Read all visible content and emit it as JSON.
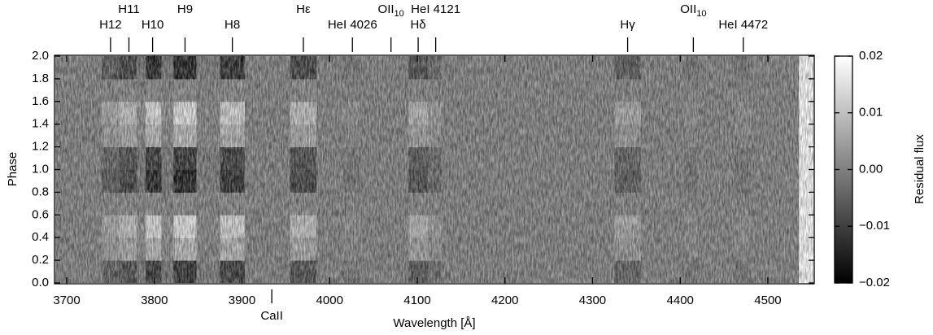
{
  "chart_data": {
    "type": "heatmap",
    "xlabel": "Wavelength [Å]",
    "ylabel": "Phase",
    "colorbar_label": "Residual flux",
    "colormap": "gray",
    "x_edges": [
      3685,
      3740,
      3760,
      3780,
      3790,
      3808,
      3822,
      3848,
      3875,
      3903,
      3955,
      3985,
      4015,
      4035,
      4090,
      4112,
      4128,
      4325,
      4355,
      4405,
      4420,
      4462,
      4480,
      4535
    ],
    "y_edges": [
      0,
      0.2,
      0.4,
      0.6,
      0.8,
      1,
      1.2,
      1.4,
      1.6,
      1.8,
      2
    ],
    "z": [
      [
        0,
        -0.0048,
        -0.008,
        -0.0016,
        -0.0112,
        -0.0016,
        -0.012,
        -0.0008,
        -0.0104,
        0,
        -0.008,
        0,
        -0.0016,
        0,
        -0.0064,
        -0.0032,
        0,
        -0.0048,
        0,
        -0.0016,
        0,
        -0.0016,
        0
      ],
      [
        0,
        0.0036,
        0.006,
        0.0012,
        0.0084,
        0.0012,
        0.009,
        0.0006,
        0.0078,
        0,
        0.006,
        0,
        0.0012,
        0,
        0.0048,
        0.0024,
        0,
        0.0036,
        0,
        0.0012,
        0,
        0.0012,
        0
      ],
      [
        0,
        0.006,
        0.01,
        0.002,
        0.014,
        0.002,
        0.015,
        0.001,
        0.013,
        0,
        0.01,
        0,
        0.002,
        0,
        0.008,
        0.004,
        0,
        0.006,
        0,
        0.002,
        0,
        0.002,
        0
      ],
      [
        0,
        0.0006,
        0.001,
        0.0002,
        0.0014,
        0.0002,
        0.0015,
        0.0001,
        0.0013,
        0,
        0.001,
        0,
        0.0002,
        0,
        0.0008,
        0.0004,
        0,
        0.0006,
        0,
        0.0002,
        0,
        0.0002,
        0
      ],
      [
        0,
        -0.006,
        -0.01,
        -0.002,
        -0.014,
        -0.002,
        -0.015,
        -0.001,
        -0.013,
        0,
        -0.01,
        0,
        -0.002,
        0,
        -0.008,
        -0.004,
        0,
        -0.006,
        0,
        -0.002,
        0,
        -0.002,
        0
      ],
      [
        0,
        -0.0048,
        -0.008,
        -0.0016,
        -0.0112,
        -0.0016,
        -0.012,
        -0.0008,
        -0.0104,
        0,
        -0.008,
        0,
        -0.0016,
        0,
        -0.0064,
        -0.0032,
        0,
        -0.0048,
        0,
        -0.0016,
        0,
        -0.0016,
        0
      ],
      [
        0,
        0.0036,
        0.006,
        0.0012,
        0.0084,
        0.0012,
        0.009,
        0.0006,
        0.0078,
        0,
        0.006,
        0,
        0.0012,
        0,
        0.0048,
        0.0024,
        0,
        0.0036,
        0,
        0.0012,
        0,
        0.0012,
        0
      ],
      [
        0,
        0.006,
        0.01,
        0.002,
        0.014,
        0.002,
        0.015,
        0.001,
        0.013,
        0,
        0.01,
        0,
        0.002,
        0,
        0.008,
        0.004,
        0,
        0.006,
        0,
        0.002,
        0,
        0.002,
        0
      ],
      [
        0,
        0.0006,
        0.001,
        0.0002,
        0.0014,
        0.0002,
        0.0015,
        0.0001,
        0.0013,
        0,
        0.001,
        0,
        0.0002,
        0,
        0.0008,
        0.0004,
        0,
        0.0006,
        0,
        0.0002,
        0,
        0.0002,
        0
      ],
      [
        0,
        -0.006,
        -0.01,
        -0.002,
        -0.014,
        -0.002,
        -0.015,
        -0.001,
        -0.013,
        0,
        -0.01,
        0,
        -0.002,
        0,
        -0.008,
        -0.004,
        0,
        -0.006,
        0,
        -0.002,
        0,
        -0.002,
        0
      ]
    ],
    "xlim": [
      3687,
      4552
    ],
    "ylim": [
      0,
      2
    ],
    "xticks": [
      3700,
      3800,
      3900,
      4000,
      4100,
      4200,
      4300,
      4400,
      4500
    ],
    "yticks": [
      {
        "value": 0,
        "label": "0.0"
      },
      0.2,
      0.4,
      0.6,
      0.8,
      {
        "value": 1,
        "label": "1.0"
      },
      1.2,
      1.4,
      1.6,
      1.8,
      {
        "value": 2,
        "label": "2.0"
      }
    ],
    "clim": [
      -0.02,
      0.02
    ],
    "cticks": [
      {
        "value": -0.02,
        "label": "−0.02"
      },
      {
        "value": -0.01,
        "label": "−0.01"
      },
      {
        "value": 0,
        "label": "0.00"
      },
      0.01,
      0.02
    ],
    "lines": [
      {
        "label": "H12",
        "wavelength": 3750
      },
      {
        "label": "H11",
        "wavelength": 3771
      },
      {
        "label": "H10",
        "wavelength": 3798
      },
      {
        "label": "H9",
        "wavelength": 3835
      },
      {
        "label": "H8",
        "wavelength": 3889
      },
      {
        "label": "Hε",
        "wavelength": 3970
      },
      {
        "label": "HeI 4026",
        "wavelength": 4026
      },
      {
        "label": "OII",
        "subscript": "10",
        "wavelength": 4070
      },
      {
        "label": "Hδ",
        "wavelength": 4101
      },
      {
        "label": "HeI 4121",
        "wavelength": 4121
      },
      {
        "label": "Hγ",
        "wavelength": 4340
      },
      {
        "label": "OII",
        "subscript": "10",
        "wavelength": 4415
      },
      {
        "label": "HeI 4472",
        "wavelength": 4472
      }
    ],
    "bottom_lines": [
      {
        "label": "CaII",
        "wavelength": 3934
      }
    ]
  }
}
